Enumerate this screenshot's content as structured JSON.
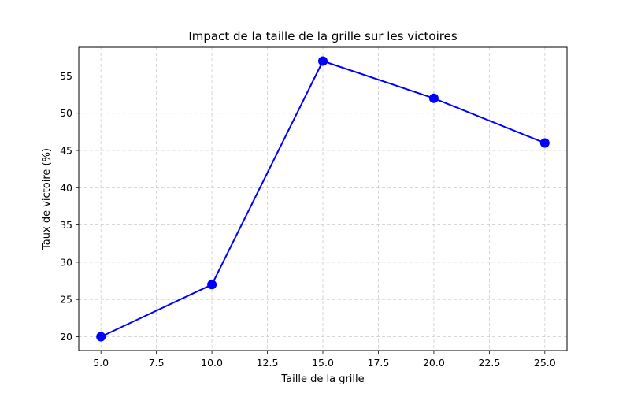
{
  "chart_data": {
    "type": "line",
    "title": "Impact de la taille de la grille sur les victoires",
    "xlabel": "Taille de la grille",
    "ylabel": "Taux de victoire (%)",
    "x": [
      5,
      10,
      15,
      20,
      25
    ],
    "series": [
      {
        "values": [
          20,
          27,
          57,
          52,
          46
        ],
        "color": "#0000ff",
        "marker": "circle"
      }
    ],
    "xlim": [
      4.0,
      26.0
    ],
    "ylim": [
      18.15,
      58.85
    ],
    "xticks": [
      5.0,
      7.5,
      10.0,
      12.5,
      15.0,
      17.5,
      20.0,
      22.5,
      25.0
    ],
    "xtick_labels": [
      "5.0",
      "7.5",
      "10.0",
      "12.5",
      "15.0",
      "17.5",
      "20.0",
      "22.5",
      "25.0"
    ],
    "yticks": [
      20,
      25,
      30,
      35,
      40,
      45,
      50,
      55
    ],
    "ytick_labels": [
      "20",
      "25",
      "30",
      "35",
      "40",
      "45",
      "50",
      "55"
    ],
    "grid": true,
    "grid_style": "dashed",
    "grid_color": "#cccccc"
  }
}
